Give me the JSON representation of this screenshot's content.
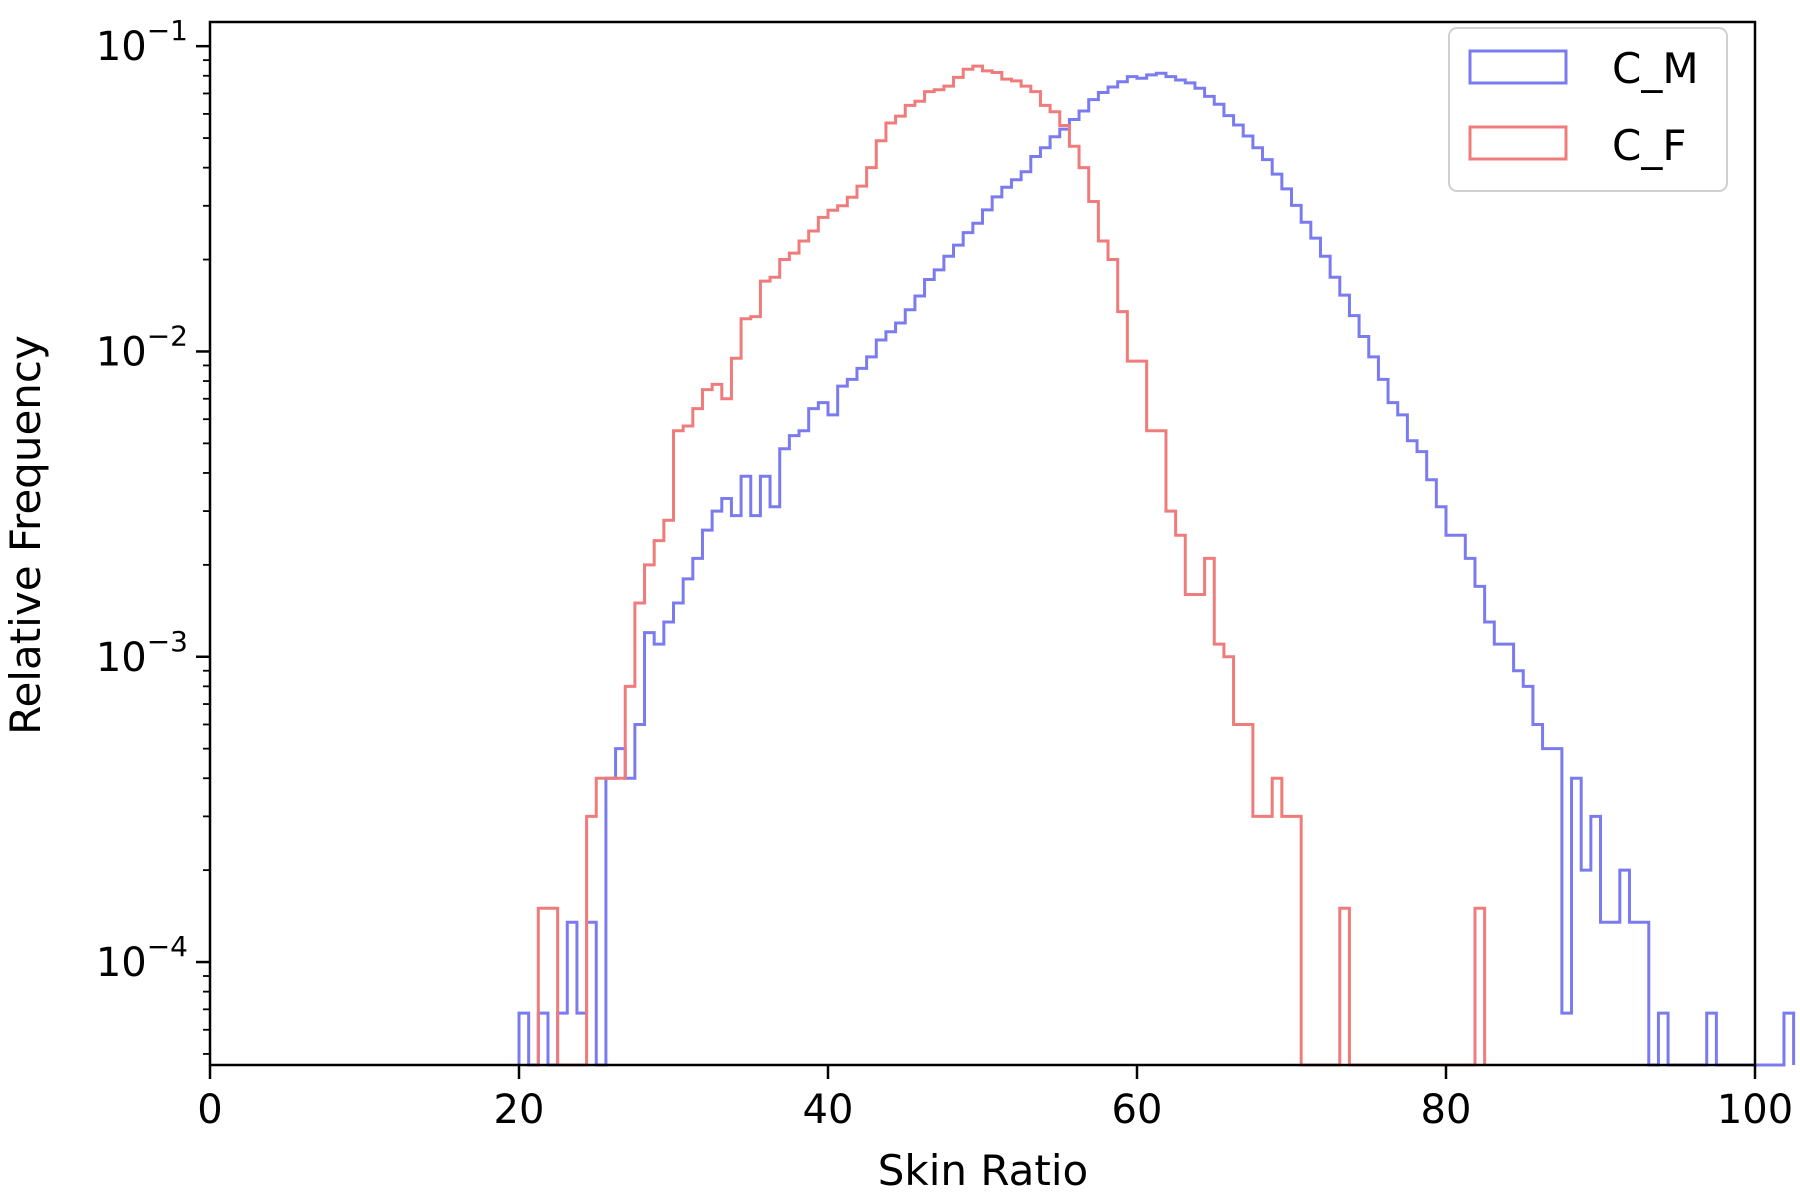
{
  "chart_data": {
    "type": "histogram",
    "title": "",
    "xlabel": "Skin Ratio",
    "ylabel": "Relative Frequency",
    "xlim": [
      0,
      100
    ],
    "ylim": [
      4.6e-05,
      0.12
    ],
    "yscale": "log",
    "bin_width": 0.625,
    "grid": false,
    "legend_position": "top-right",
    "x_ticks": [
      {
        "value": 0,
        "label": "0"
      },
      {
        "value": 20,
        "label": "20"
      },
      {
        "value": 40,
        "label": "40"
      },
      {
        "value": 60,
        "label": "60"
      },
      {
        "value": 80,
        "label": "80"
      },
      {
        "value": 100,
        "label": "100"
      }
    ],
    "y_ticks": [
      {
        "value": 0.1,
        "base": "10",
        "exp": "−1"
      },
      {
        "value": 0.01,
        "base": "10",
        "exp": "−2"
      },
      {
        "value": 0.001,
        "base": "10",
        "exp": "−3"
      },
      {
        "value": 0.0001,
        "base": "10",
        "exp": "−4"
      }
    ],
    "series": [
      {
        "name": "C_M",
        "color": "#7b7bf0",
        "x_start": 20,
        "values": [
          6.8e-05,
          0,
          6.8e-05,
          0,
          6.8e-05,
          0.000135,
          6.8e-05,
          0.000135,
          0,
          0.0004,
          0.0005,
          0.0004,
          0.0006,
          0.0012,
          0.0011,
          0.0013,
          0.0015,
          0.0018,
          0.0021,
          0.0026,
          0.003,
          0.0033,
          0.0029,
          0.0039,
          0.0029,
          0.0039,
          0.0031,
          0.0048,
          0.0053,
          0.0055,
          0.0065,
          0.0068,
          0.0062,
          0.0077,
          0.0081,
          0.0088,
          0.0096,
          0.0109,
          0.0116,
          0.0124,
          0.0137,
          0.0152,
          0.0172,
          0.0185,
          0.0205,
          0.0223,
          0.0245,
          0.0263,
          0.0291,
          0.0321,
          0.0345,
          0.0365,
          0.0388,
          0.0435,
          0.0465,
          0.0505,
          0.0535,
          0.0575,
          0.0613,
          0.0668,
          0.0705,
          0.0735,
          0.0765,
          0.0795,
          0.0785,
          0.0805,
          0.0815,
          0.0795,
          0.0775,
          0.0758,
          0.0728,
          0.0685,
          0.0645,
          0.0592,
          0.0552,
          0.0508,
          0.0465,
          0.0425,
          0.0381,
          0.0341,
          0.0301,
          0.0265,
          0.0235,
          0.0205,
          0.0175,
          0.0153,
          0.0131,
          0.0112,
          0.0096,
          0.0081,
          0.0068,
          0.0062,
          0.0051,
          0.0047,
          0.0038,
          0.0031,
          0.0025,
          0.0025,
          0.0021,
          0.0017,
          0.0013,
          0.0011,
          0.0011,
          0.0009,
          0.0008,
          0.0006,
          0.0005,
          0.0005,
          6.8e-05,
          0.0004,
          0.0002,
          0.0003,
          0.000135,
          0.000135,
          0.0002,
          0.000135,
          0.000135,
          0,
          6.8e-05,
          0,
          0,
          0,
          0,
          6.8e-05,
          0,
          0,
          0,
          0,
          0,
          0,
          0,
          6.8e-05
        ]
      },
      {
        "name": "C_F",
        "color": "#f07b7b",
        "x_start": 21.25,
        "values": [
          0.00015,
          0.00015,
          0,
          0,
          0,
          0.0003,
          0.0004,
          0.0004,
          0.0004,
          0.0008,
          0.0015,
          0.002,
          0.0024,
          0.0028,
          0.0055,
          0.0057,
          0.0065,
          0.0075,
          0.0078,
          0.007,
          0.0095,
          0.0128,
          0.013,
          0.017,
          0.0175,
          0.02,
          0.021,
          0.023,
          0.0248,
          0.0275,
          0.029,
          0.03,
          0.032,
          0.0348,
          0.04,
          0.049,
          0.056,
          0.059,
          0.064,
          0.066,
          0.071,
          0.072,
          0.074,
          0.079,
          0.084,
          0.086,
          0.083,
          0.082,
          0.078,
          0.077,
          0.074,
          0.071,
          0.064,
          0.061,
          0.055,
          0.047,
          0.04,
          0.031,
          0.023,
          0.02,
          0.0135,
          0.0093,
          0.0093,
          0.0055,
          0.0055,
          0.003,
          0.0025,
          0.0016,
          0.0016,
          0.0021,
          0.0011,
          0.001,
          0.0006,
          0.0006,
          0.0003,
          0.0003,
          0.0004,
          0.0003,
          0.0003,
          0,
          0,
          0,
          0,
          0.00015,
          0,
          0,
          0,
          0,
          0,
          0,
          0,
          0,
          0,
          0,
          0,
          0,
          0,
          0.00015
        ]
      }
    ]
  }
}
